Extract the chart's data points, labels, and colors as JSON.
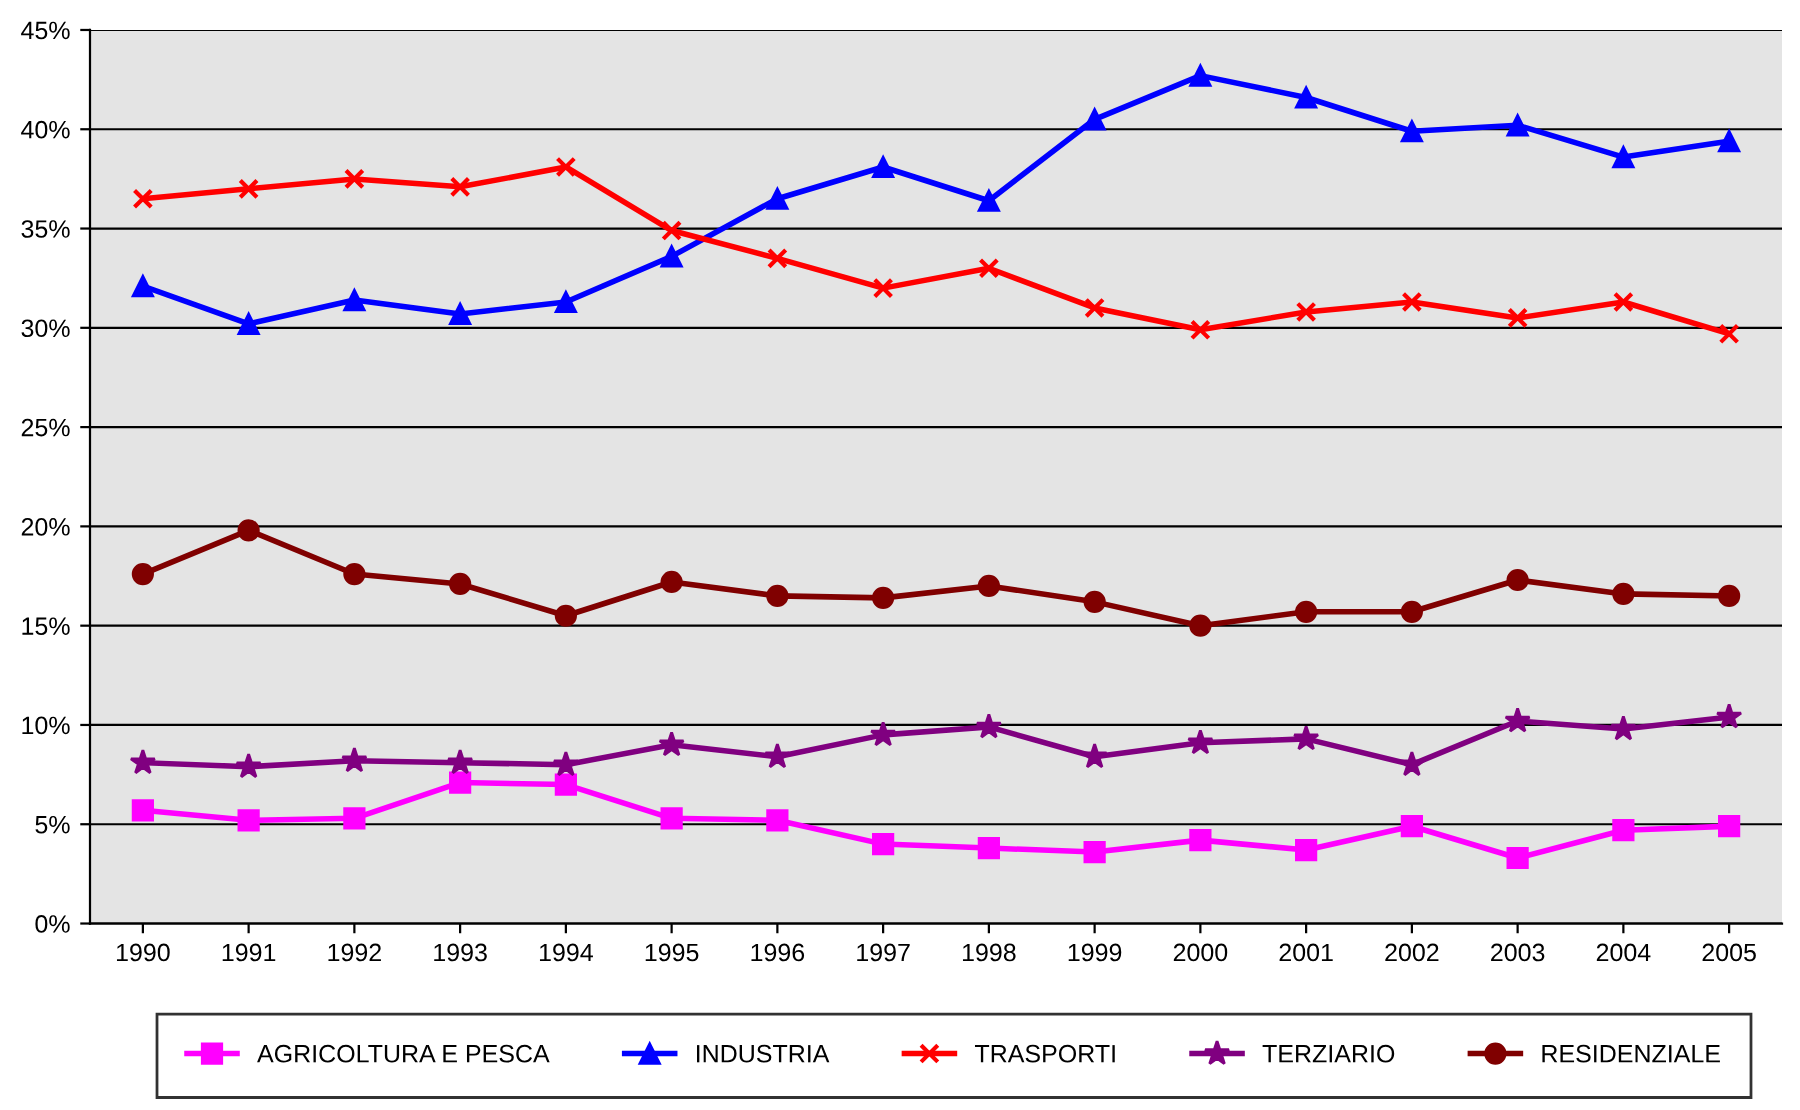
{
  "chart_data": {
    "type": "line",
    "categories": [
      "1990",
      "1991",
      "1992",
      "1993",
      "1994",
      "1995",
      "1996",
      "1997",
      "1998",
      "1999",
      "2000",
      "2001",
      "2002",
      "2003",
      "2004",
      "2005"
    ],
    "series": [
      {
        "name": "AGRICOLTURA E PESCA",
        "color": "#ff00ff",
        "marker": "square",
        "values": [
          5.7,
          5.2,
          5.3,
          7.1,
          7.0,
          5.3,
          5.2,
          4.0,
          3.8,
          3.6,
          4.2,
          3.7,
          4.9,
          3.3,
          4.7,
          4.9
        ]
      },
      {
        "name": "INDUSTRIA",
        "color": "#0000ff",
        "marker": "triangle",
        "values": [
          32.1,
          30.2,
          31.4,
          30.7,
          31.3,
          33.6,
          36.5,
          38.1,
          36.4,
          40.5,
          42.7,
          41.6,
          39.9,
          40.2,
          38.6,
          39.4
        ]
      },
      {
        "name": "TRASPORTI",
        "color": "#ff0000",
        "marker": "cross",
        "values": [
          36.5,
          37.0,
          37.5,
          37.1,
          38.1,
          34.9,
          33.5,
          32.0,
          33.0,
          31.0,
          29.9,
          30.8,
          31.3,
          30.5,
          31.3,
          29.7
        ]
      },
      {
        "name": "TERZIARIO",
        "color": "#800080",
        "marker": "star",
        "values": [
          8.1,
          7.9,
          8.2,
          8.1,
          8.0,
          9.0,
          8.4,
          9.5,
          9.9,
          8.4,
          9.1,
          9.3,
          8.0,
          10.2,
          9.8,
          10.4
        ]
      },
      {
        "name": "RESIDENZIALE",
        "color": "#800000",
        "marker": "circle",
        "values": [
          17.6,
          19.8,
          17.6,
          17.1,
          15.5,
          17.2,
          16.5,
          16.4,
          17.0,
          16.2,
          15.0,
          15.7,
          15.7,
          17.3,
          16.6,
          16.5
        ]
      }
    ],
    "ylim": [
      0,
      45
    ],
    "yticks": [
      {
        "value": 0,
        "label": "0%"
      },
      {
        "value": 5,
        "label": "5%"
      },
      {
        "value": 10,
        "label": "10%"
      },
      {
        "value": 15,
        "label": "15%"
      },
      {
        "value": 20,
        "label": "20%"
      },
      {
        "value": 25,
        "label": "25%"
      },
      {
        "value": 30,
        "label": "30%"
      },
      {
        "value": 35,
        "label": "35%"
      },
      {
        "value": 40,
        "label": "40%"
      },
      {
        "value": 45,
        "label": "45%"
      }
    ],
    "grid": "y",
    "legend": "bottom",
    "line_style": "solid"
  }
}
